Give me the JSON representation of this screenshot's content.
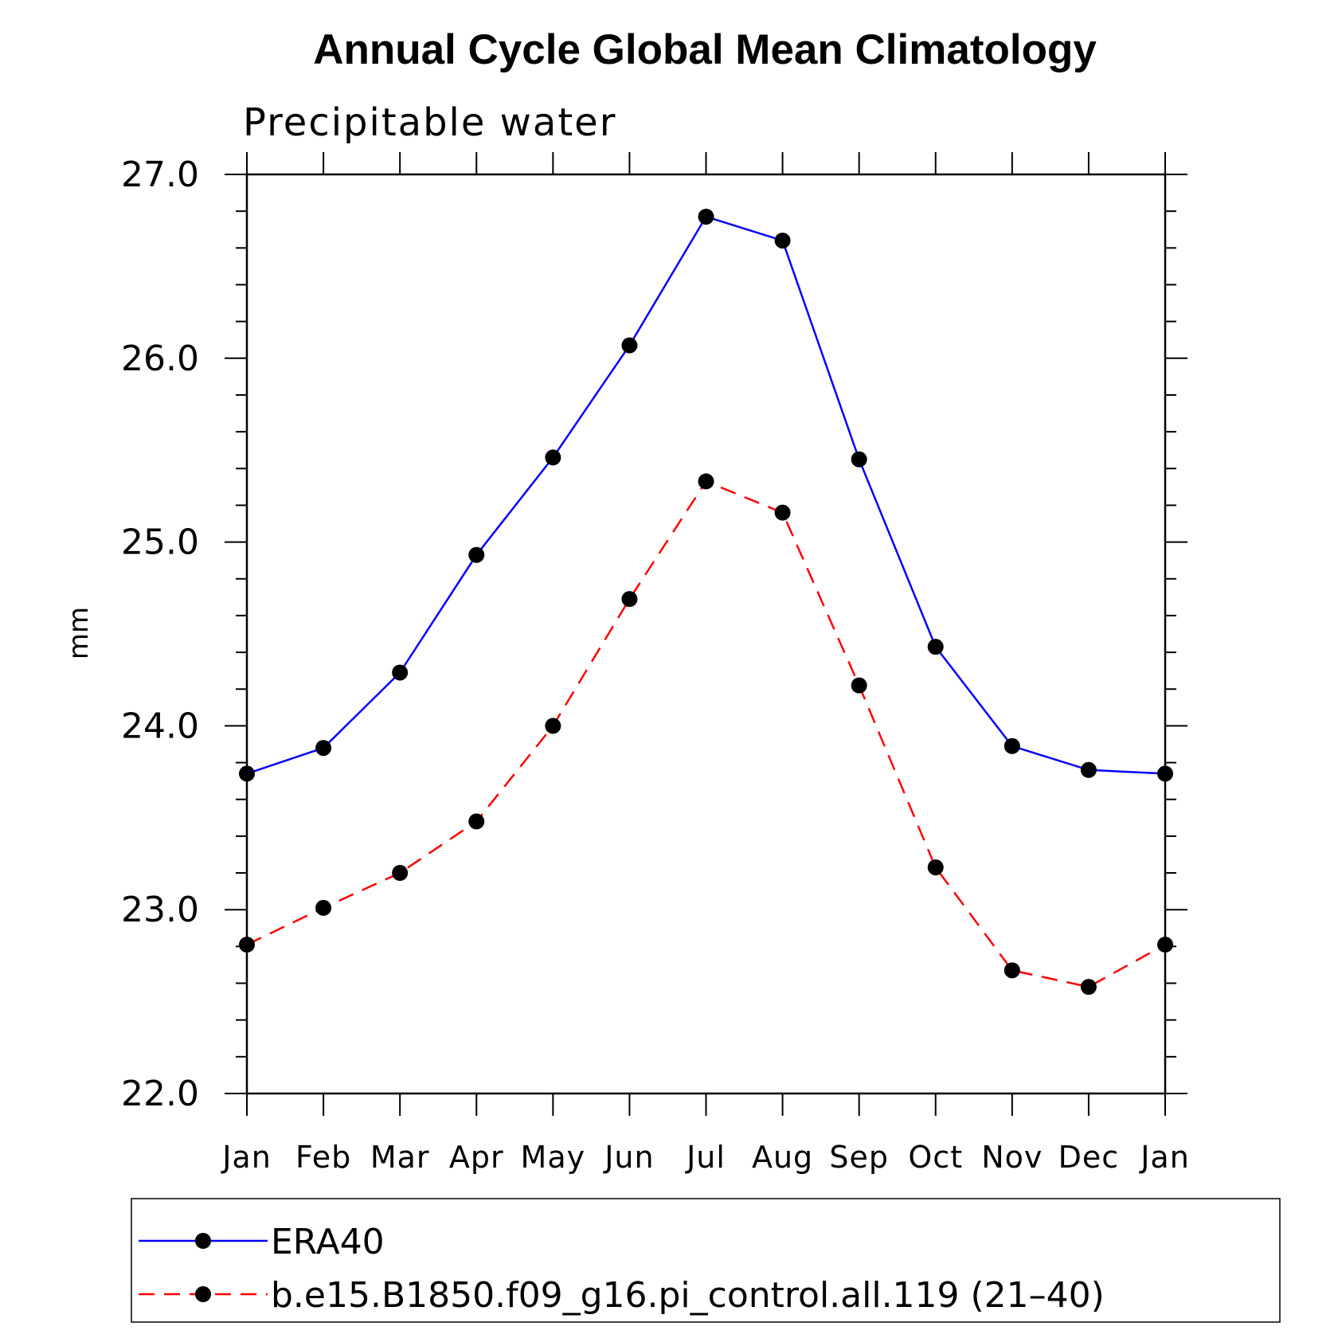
{
  "chart_data": {
    "type": "line",
    "title": "Annual Cycle Global Mean Climatology",
    "subtitle": "Precipitable water",
    "xlabel": "",
    "ylabel": "mm",
    "categories": [
      "Jan",
      "Feb",
      "Mar",
      "Apr",
      "May",
      "Jun",
      "Jul",
      "Aug",
      "Sep",
      "Oct",
      "Nov",
      "Dec",
      "Jan"
    ],
    "ylim": [
      22.0,
      27.0
    ],
    "yticks": [
      "22.0",
      "23.0",
      "24.0",
      "25.0",
      "26.0",
      "27.0"
    ],
    "grid": false,
    "legend_position": "bottom",
    "series": [
      {
        "name": "ERA40",
        "color": "#0000ff",
        "dash": "solid",
        "marker": "filled-circle",
        "values": [
          23.74,
          23.88,
          24.29,
          24.93,
          25.46,
          26.07,
          26.77,
          26.64,
          25.45,
          24.43,
          23.89,
          23.76,
          23.74
        ]
      },
      {
        "name": "b.e15.B1850.f09_g16.pi_control.all.119 (21–40)",
        "color": "#ff0000",
        "dash": "dashed",
        "marker": "filled-circle",
        "values": [
          22.81,
          23.01,
          23.2,
          23.48,
          24.0,
          24.69,
          25.33,
          25.16,
          24.22,
          23.23,
          22.67,
          22.58,
          22.81
        ]
      }
    ]
  }
}
